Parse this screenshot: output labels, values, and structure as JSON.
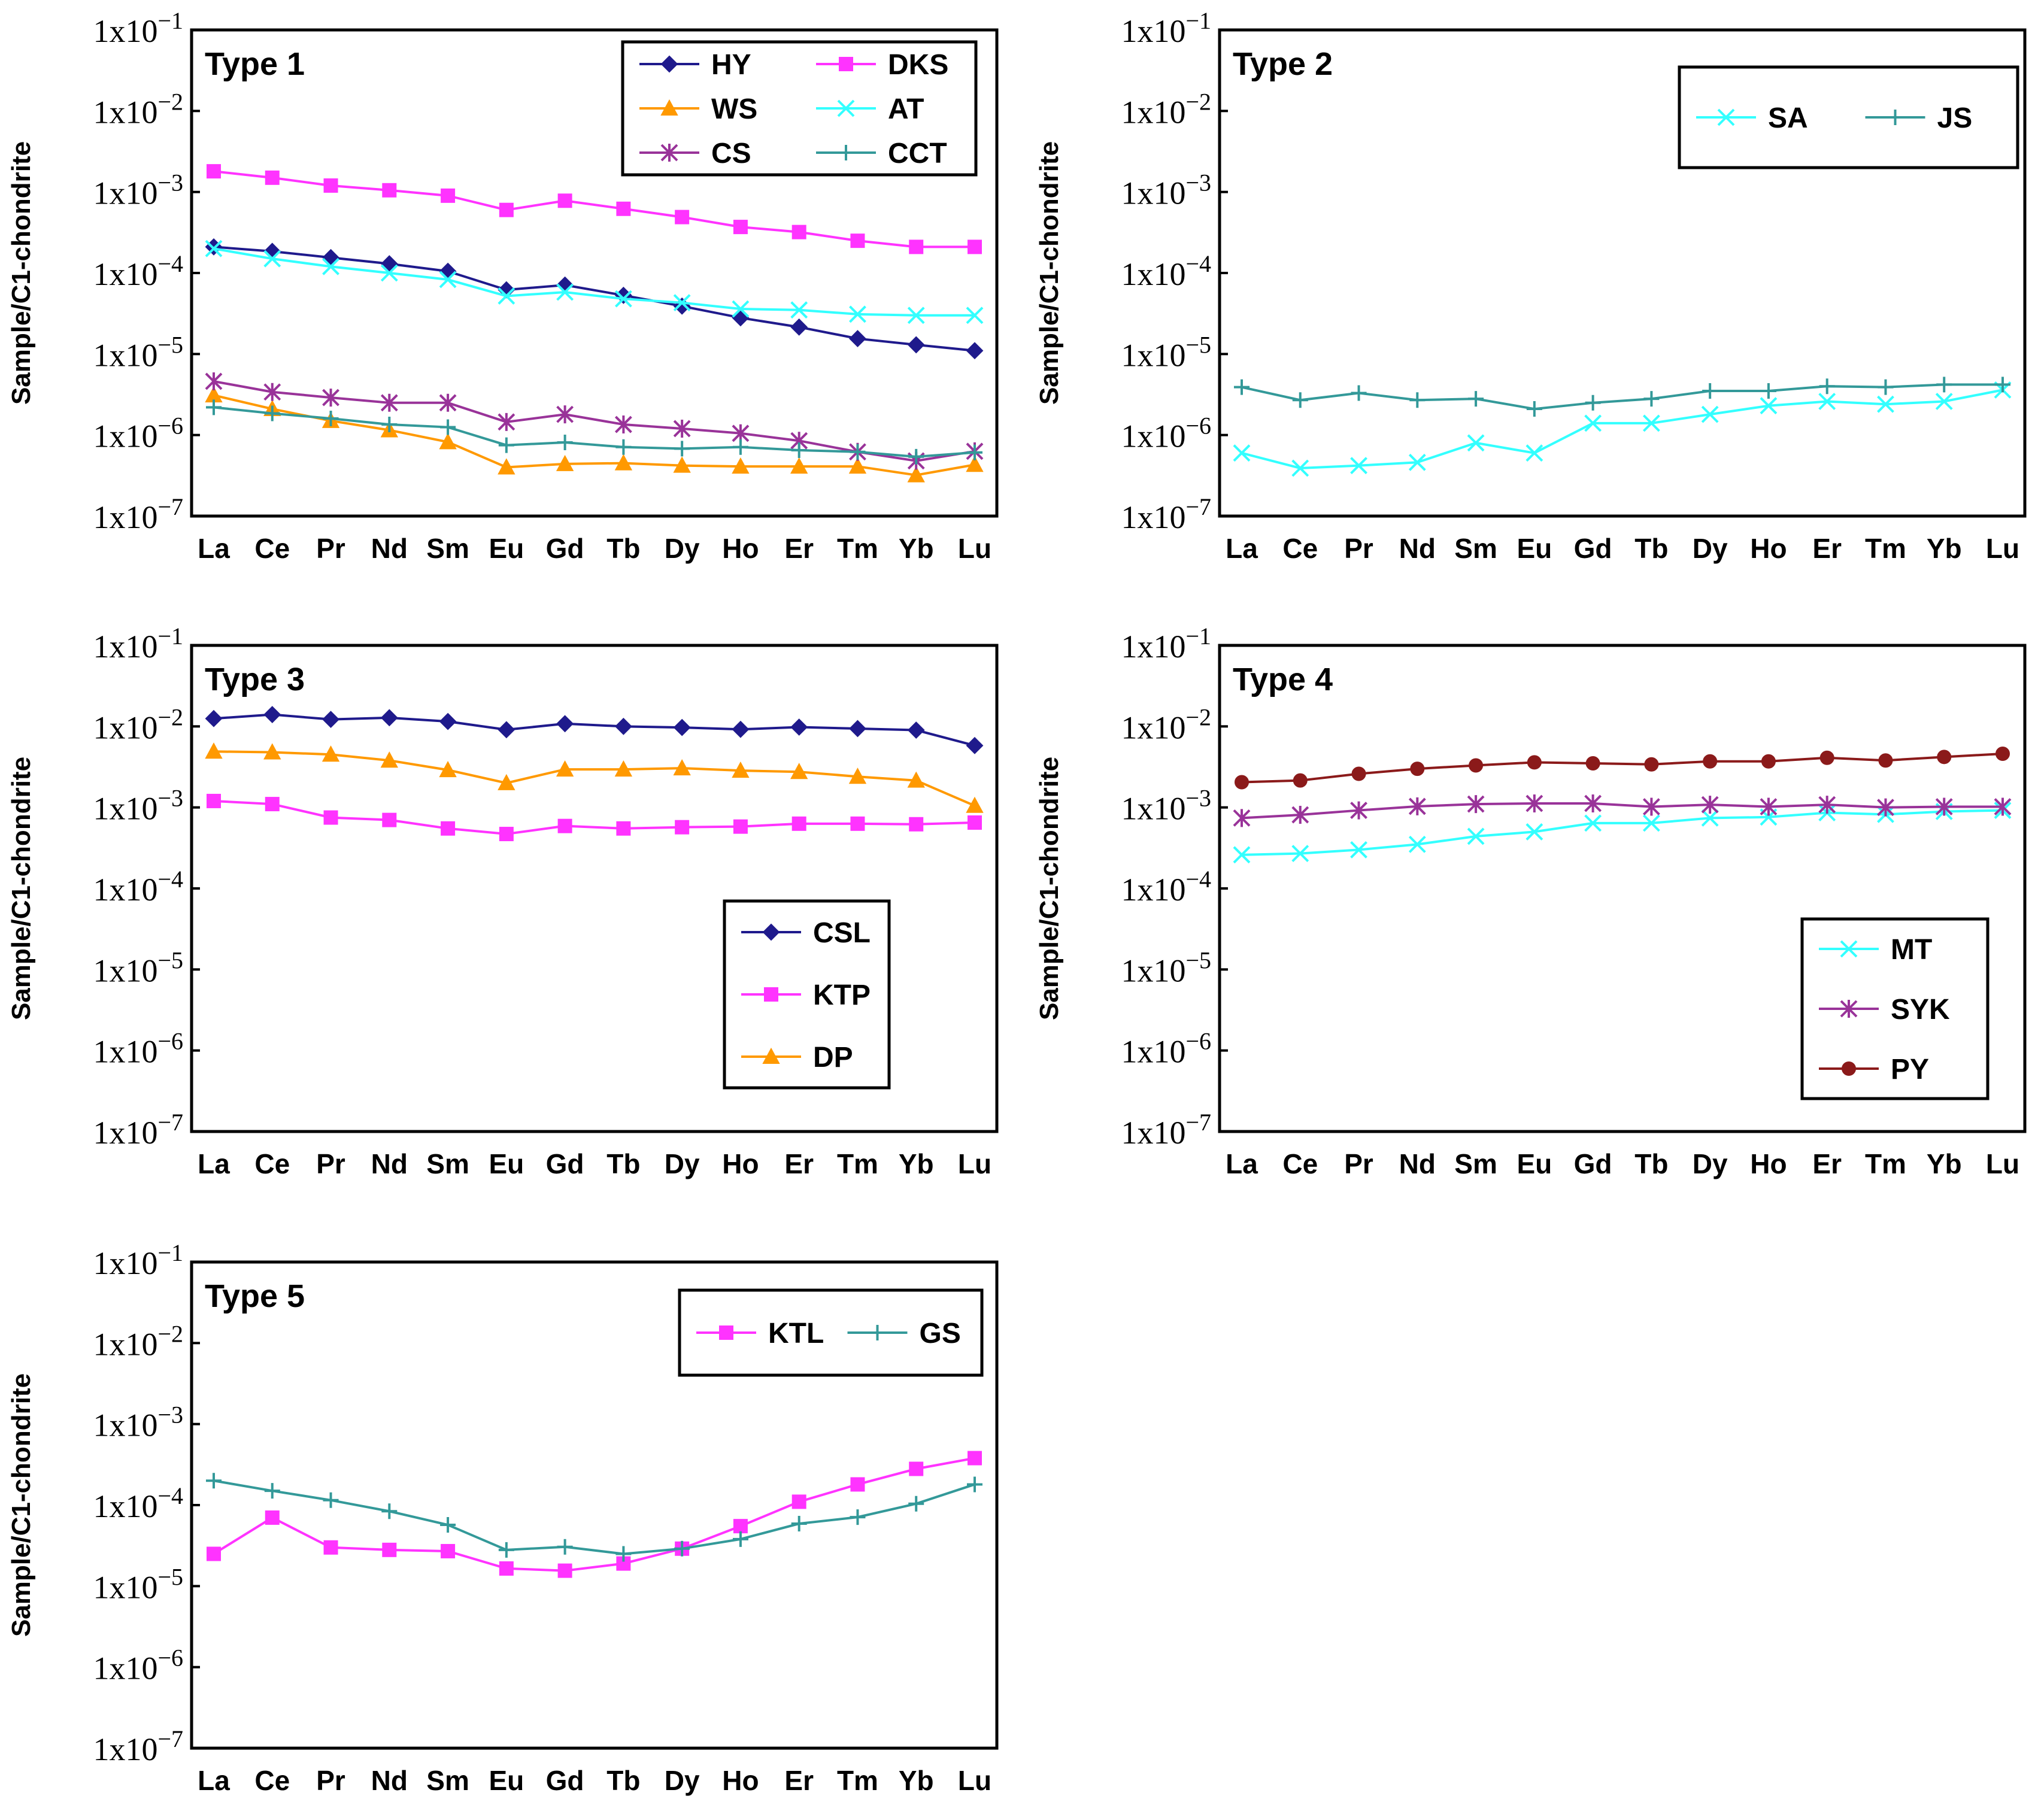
{
  "chart_data": [
    {
      "type": "line",
      "title": "Type 1",
      "ylabel": "Sample/C1-chondrite",
      "yscale": "log",
      "ylim": [
        1e-07,
        0.1
      ],
      "ytick_exponents": [
        -1,
        -2,
        -3,
        -4,
        -5,
        -6,
        -7
      ],
      "ytick_base": "1x10",
      "categories": [
        "La",
        "Ce",
        "Pr",
        "Nd",
        "Sm",
        "Eu",
        "Gd",
        "Tb",
        "Dy",
        "Ho",
        "Er",
        "Tm",
        "Yb",
        "Lu"
      ],
      "legend_position": "top-right",
      "legend_columns": 2,
      "series": [
        {
          "name": "HY",
          "color": "#1f1a8c",
          "marker": "diamond",
          "values": [
            0.00021,
            0.000185,
            0.000155,
            0.00013,
            0.000105,
            6.2e-05,
            7.1e-05,
            5.3e-05,
            3.9e-05,
            2.8e-05,
            2.15e-05,
            1.55e-05,
            1.3e-05,
            1.1e-05
          ]
        },
        {
          "name": "DKS",
          "color": "#ff33ff",
          "marker": "square",
          "values": [
            0.0018,
            0.0015,
            0.0012,
            0.00105,
            0.0009,
            0.0006,
            0.00078,
            0.00062,
            0.00049,
            0.00037,
            0.00032,
            0.00025,
            0.00021,
            0.00021
          ]
        },
        {
          "name": "WS",
          "color": "#ff9900",
          "marker": "triangle",
          "values": [
            3.1e-06,
            2.1e-06,
            1.5e-06,
            1.15e-06,
            8.2e-07,
            4e-07,
            4.4e-07,
            4.5e-07,
            4.2e-07,
            4.1e-07,
            4.1e-07,
            4.1e-07,
            3.2e-07,
            4.3e-07
          ]
        },
        {
          "name": "AT",
          "color": "#33ffff",
          "marker": "x",
          "values": [
            0.0002,
            0.00015,
            0.00012,
            0.0001,
            8.3e-05,
            5.2e-05,
            5.8e-05,
            4.8e-05,
            4.3e-05,
            3.6e-05,
            3.5e-05,
            3.1e-05,
            3e-05,
            3e-05
          ]
        },
        {
          "name": "CS",
          "color": "#993399",
          "marker": "star",
          "values": [
            4.6e-06,
            3.4e-06,
            2.9e-06,
            2.5e-06,
            2.5e-06,
            1.45e-06,
            1.8e-06,
            1.35e-06,
            1.2e-06,
            1.05e-06,
            8.5e-07,
            6.2e-07,
            4.8e-07,
            6.3e-07
          ]
        },
        {
          "name": "CCT",
          "color": "#339999",
          "marker": "plus",
          "values": [
            2.2e-06,
            1.85e-06,
            1.6e-06,
            1.35e-06,
            1.25e-06,
            7.5e-07,
            8.1e-07,
            7.1e-07,
            6.8e-07,
            7.1e-07,
            6.5e-07,
            6.2e-07,
            5.4e-07,
            6.1e-07
          ]
        }
      ]
    },
    {
      "type": "line",
      "title": "Type 2",
      "ylabel": "Sample/C1-chondrite",
      "yscale": "log",
      "ylim": [
        1e-07,
        0.1
      ],
      "ytick_exponents": [
        -1,
        -2,
        -3,
        -4,
        -5,
        -6,
        -7
      ],
      "ytick_base": "1x10",
      "categories": [
        "La",
        "Ce",
        "Pr",
        "Nd",
        "Sm",
        "Eu",
        "Gd",
        "Tb",
        "Dy",
        "Ho",
        "Er",
        "Tm",
        "Yb",
        "Lu"
      ],
      "legend_position": "top-right",
      "legend_columns": 2,
      "series": [
        {
          "name": "SA",
          "color": "#33ffff",
          "marker": "x",
          "values": [
            6e-07,
            3.9e-07,
            4.2e-07,
            4.6e-07,
            8e-07,
            6e-07,
            1.4e-06,
            1.4e-06,
            1.8e-06,
            2.3e-06,
            2.6e-06,
            2.4e-06,
            2.6e-06,
            3.6e-06
          ]
        },
        {
          "name": "JS",
          "color": "#339999",
          "marker": "plus",
          "values": [
            3.9e-06,
            2.7e-06,
            3.3e-06,
            2.7e-06,
            2.8e-06,
            2.1e-06,
            2.5e-06,
            2.8e-06,
            3.5e-06,
            3.5e-06,
            4e-06,
            3.9e-06,
            4.2e-06,
            4.2e-06
          ]
        }
      ]
    },
    {
      "type": "line",
      "title": "Type 3",
      "ylabel": "Sample/C1-chondrite",
      "yscale": "log",
      "ylim": [
        1e-07,
        0.1
      ],
      "ytick_exponents": [
        -1,
        -2,
        -3,
        -4,
        -5,
        -6,
        -7
      ],
      "ytick_base": "1x10",
      "categories": [
        "La",
        "Ce",
        "Pr",
        "Nd",
        "Sm",
        "Eu",
        "Gd",
        "Tb",
        "Dy",
        "Ho",
        "Er",
        "Tm",
        "Yb",
        "Lu"
      ],
      "legend_position": "lower-right",
      "legend_columns": 1,
      "series": [
        {
          "name": "CSL",
          "color": "#1f1a8c",
          "marker": "diamond",
          "values": [
            0.0125,
            0.014,
            0.0122,
            0.0128,
            0.0115,
            0.0091,
            0.0108,
            0.01,
            0.0097,
            0.0092,
            0.0098,
            0.0094,
            0.009,
            0.0058
          ]
        },
        {
          "name": "KTP",
          "color": "#ff33ff",
          "marker": "square",
          "values": [
            0.0012,
            0.0011,
            0.00075,
            0.0007,
            0.00055,
            0.00047,
            0.00059,
            0.00055,
            0.00057,
            0.00058,
            0.00063,
            0.00063,
            0.00062,
            0.00065
          ]
        },
        {
          "name": "DP",
          "color": "#ff9900",
          "marker": "triangle",
          "values": [
            0.0049,
            0.0048,
            0.0045,
            0.0038,
            0.0029,
            0.002,
            0.00295,
            0.00295,
            0.00305,
            0.00285,
            0.00275,
            0.0024,
            0.00215,
            0.00105
          ]
        }
      ]
    },
    {
      "type": "line",
      "title": "Type 4",
      "ylabel": "Sample/C1-chondrite",
      "yscale": "log",
      "ylim": [
        1e-07,
        0.1
      ],
      "ytick_exponents": [
        -1,
        -2,
        -3,
        -4,
        -5,
        -6,
        -7
      ],
      "ytick_base": "1x10",
      "categories": [
        "La",
        "Ce",
        "Pr",
        "Nd",
        "Sm",
        "Eu",
        "Gd",
        "Tb",
        "Dy",
        "Ho",
        "Er",
        "Tm",
        "Yb",
        "Lu"
      ],
      "legend_position": "lower-right",
      "legend_columns": 1,
      "series": [
        {
          "name": "MT",
          "color": "#33ffff",
          "marker": "x",
          "values": [
            0.00026,
            0.00027,
            0.0003,
            0.00035,
            0.00044,
            0.0005,
            0.00064,
            0.00064,
            0.00074,
            0.00076,
            0.00086,
            0.00082,
            0.00089,
            0.00092
          ]
        },
        {
          "name": "SYK",
          "color": "#993399",
          "marker": "star",
          "values": [
            0.00074,
            0.00081,
            0.00092,
            0.00103,
            0.0011,
            0.00112,
            0.00112,
            0.00102,
            0.00108,
            0.00102,
            0.00108,
            0.001,
            0.00102,
            0.00102
          ]
        },
        {
          "name": "PY",
          "color": "#8b1a1a",
          "marker": "circle",
          "values": [
            0.00205,
            0.00215,
            0.0026,
            0.003,
            0.0033,
            0.0036,
            0.0035,
            0.0034,
            0.0037,
            0.0037,
            0.0041,
            0.0038,
            0.0042,
            0.0046
          ]
        }
      ]
    },
    {
      "type": "line",
      "title": "Type 5",
      "ylabel": "Sample/C1-chondrite",
      "yscale": "log",
      "ylim": [
        1e-07,
        0.1
      ],
      "ytick_exponents": [
        -1,
        -2,
        -3,
        -4,
        -5,
        -6,
        -7
      ],
      "ytick_base": "1x10",
      "categories": [
        "La",
        "Ce",
        "Pr",
        "Nd",
        "Sm",
        "Eu",
        "Gd",
        "Tb",
        "Dy",
        "Ho",
        "Er",
        "Tm",
        "Yb",
        "Lu"
      ],
      "legend_position": "top-right",
      "legend_columns": 2,
      "series": [
        {
          "name": "KTL",
          "color": "#ff33ff",
          "marker": "square",
          "values": [
            2.5e-05,
            7e-05,
            3e-05,
            2.8e-05,
            2.7e-05,
            1.65e-05,
            1.55e-05,
            1.9e-05,
            2.9e-05,
            5.5e-05,
            0.00011,
            0.00018,
            0.00028,
            0.00038
          ]
        },
        {
          "name": "GS",
          "color": "#339999",
          "marker": "plus",
          "values": [
            0.0002,
            0.00015,
            0.000115,
            8.4e-05,
            5.7e-05,
            2.8e-05,
            3.05e-05,
            2.5e-05,
            2.9e-05,
            3.8e-05,
            5.9e-05,
            7.1e-05,
            0.000104,
            0.00018
          ]
        }
      ]
    }
  ]
}
